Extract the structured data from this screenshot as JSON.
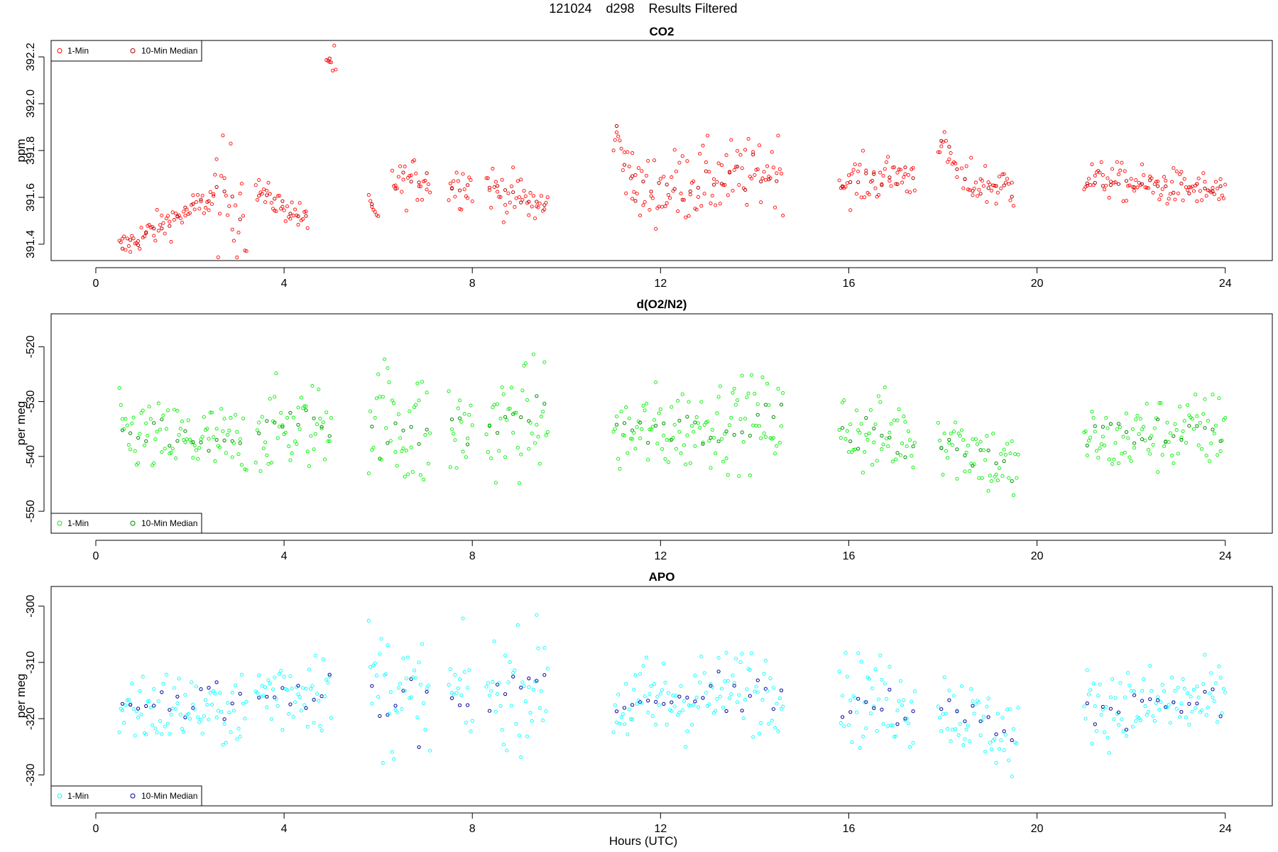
{
  "figure": {
    "title": "121024    d298    Results Filtered",
    "xlabel": "Hours (UTC)"
  },
  "chart_data": [
    {
      "type": "scatter",
      "title": "CO2",
      "ylabel": "ppm",
      "xlim": [
        -0.95,
        25.0
      ],
      "ylim": [
        391.33,
        392.27
      ],
      "xticks": [
        0,
        4,
        8,
        12,
        16,
        20,
        24
      ],
      "yticks": [
        391.4,
        391.6,
        391.8,
        392.0,
        392.2
      ],
      "ytick_labels": [
        "391.4",
        "391.6",
        "391.8",
        "392.0",
        "392.2"
      ],
      "legend": {
        "position": "top-left",
        "entries": [
          "1-Min",
          "10-Min Median"
        ]
      },
      "colors": {
        "one_min": "#ff0000",
        "median": "#b00000"
      },
      "segments": [
        {
          "x": [
            0.5,
            2.5
          ],
          "y": [
            391.38,
            391.6
          ],
          "sd": 0.035
        },
        {
          "x": [
            2.5,
            3.2
          ],
          "y": [
            391.6,
            391.58
          ],
          "sd": 0.12
        },
        {
          "x": [
            3.4,
            4.5
          ],
          "y": [
            391.63,
            391.5
          ],
          "sd": 0.03
        },
        {
          "x": [
            4.9,
            5.1
          ],
          "y": [
            392.2,
            392.16
          ],
          "sd": 0.04
        },
        {
          "x": [
            5.8,
            6.0
          ],
          "y": [
            391.58,
            391.5
          ],
          "sd": 0.02
        },
        {
          "x": [
            6.3,
            7.1
          ],
          "y": [
            391.66,
            391.68
          ],
          "sd": 0.05
        },
        {
          "x": [
            7.5,
            8.0
          ],
          "y": [
            391.65,
            391.66
          ],
          "sd": 0.05
        },
        {
          "x": [
            8.3,
            9.6
          ],
          "y": [
            391.65,
            391.55
          ],
          "sd": 0.05
        },
        {
          "x": [
            11.0,
            11.4
          ],
          "y": [
            391.9,
            391.68
          ],
          "sd": 0.06
        },
        {
          "x": [
            11.4,
            14.6
          ],
          "y": [
            391.62,
            391.72
          ],
          "sd": 0.08
        },
        {
          "x": [
            15.8,
            17.4
          ],
          "y": [
            391.66,
            391.7
          ],
          "sd": 0.05
        },
        {
          "x": [
            17.9,
            18.3
          ],
          "y": [
            391.85,
            391.72
          ],
          "sd": 0.04
        },
        {
          "x": [
            18.4,
            19.5
          ],
          "y": [
            391.66,
            391.64
          ],
          "sd": 0.05
        },
        {
          "x": [
            21.0,
            24.0
          ],
          "y": [
            391.68,
            391.62
          ],
          "sd": 0.04
        }
      ]
    },
    {
      "type": "scatter",
      "title": "d(O2/N2)",
      "ylabel": "per meg",
      "xlim": [
        -0.95,
        25.0
      ],
      "ylim": [
        -554.0,
        -514.0
      ],
      "xticks": [
        0,
        4,
        8,
        12,
        16,
        20,
        24
      ],
      "yticks": [
        -550,
        -540,
        -530,
        -520
      ],
      "ytick_labels": [
        "-550",
        "-540",
        "-530",
        "-520"
      ],
      "legend": {
        "position": "bottom-left",
        "entries": [
          "1-Min",
          "10-Min Median"
        ]
      },
      "colors": {
        "one_min": "#00ee00",
        "median": "#008800"
      },
      "segments": [
        {
          "x": [
            0.5,
            3.2
          ],
          "y": [
            -536.0,
            -538.0
          ],
          "sd": 3.5
        },
        {
          "x": [
            3.4,
            5.0
          ],
          "y": [
            -535.0,
            -534.0
          ],
          "sd": 4.0
        },
        {
          "x": [
            5.8,
            7.1
          ],
          "y": [
            -533.0,
            -536.0
          ],
          "sd": 6.0
        },
        {
          "x": [
            7.5,
            8.0
          ],
          "y": [
            -535.0,
            -536.0
          ],
          "sd": 5.0
        },
        {
          "x": [
            8.3,
            9.6
          ],
          "y": [
            -535.0,
            -532.0
          ],
          "sd": 5.0
        },
        {
          "x": [
            11.0,
            14.6
          ],
          "y": [
            -536.0,
            -533.0
          ],
          "sd": 4.0
        },
        {
          "x": [
            15.8,
            17.4
          ],
          "y": [
            -535.0,
            -537.0
          ],
          "sd": 4.0
        },
        {
          "x": [
            17.9,
            19.6
          ],
          "y": [
            -536.0,
            -543.0
          ],
          "sd": 3.5
        },
        {
          "x": [
            21.0,
            24.0
          ],
          "y": [
            -537.0,
            -535.0
          ],
          "sd": 3.5
        }
      ]
    },
    {
      "type": "scatter",
      "title": "APO",
      "ylabel": "per meg",
      "xlim": [
        -0.95,
        25.0
      ],
      "ylim": [
        -335.5,
        -296.5
      ],
      "xticks": [
        0,
        4,
        8,
        12,
        16,
        20,
        24
      ],
      "yticks": [
        -330,
        -320,
        -310,
        -300
      ],
      "ytick_labels": [
        "-330",
        "-320",
        "-310",
        "-300"
      ],
      "legend": {
        "position": "bottom-left",
        "entries": [
          "1-Min",
          "10-Min Median"
        ]
      },
      "colors": {
        "one_min": "#00ffff",
        "median": "#000099"
      },
      "segments": [
        {
          "x": [
            0.5,
            3.2
          ],
          "y": [
            -318.0,
            -318.0
          ],
          "sd": 3.5
        },
        {
          "x": [
            3.4,
            5.0
          ],
          "y": [
            -316.0,
            -314.0
          ],
          "sd": 4.0
        },
        {
          "x": [
            5.8,
            7.1
          ],
          "y": [
            -314.0,
            -318.0
          ],
          "sd": 6.0
        },
        {
          "x": [
            7.5,
            8.0
          ],
          "y": [
            -316.0,
            -317.0
          ],
          "sd": 5.0
        },
        {
          "x": [
            8.3,
            9.6
          ],
          "y": [
            -316.0,
            -313.0
          ],
          "sd": 5.0
        },
        {
          "x": [
            11.0,
            14.6
          ],
          "y": [
            -318.0,
            -314.0
          ],
          "sd": 4.0
        },
        {
          "x": [
            15.8,
            17.4
          ],
          "y": [
            -316.0,
            -318.0
          ],
          "sd": 4.0
        },
        {
          "x": [
            17.9,
            19.6
          ],
          "y": [
            -317.0,
            -324.0
          ],
          "sd": 3.5
        },
        {
          "x": [
            21.0,
            24.0
          ],
          "y": [
            -318.0,
            -317.0
          ],
          "sd": 3.5
        }
      ]
    }
  ]
}
